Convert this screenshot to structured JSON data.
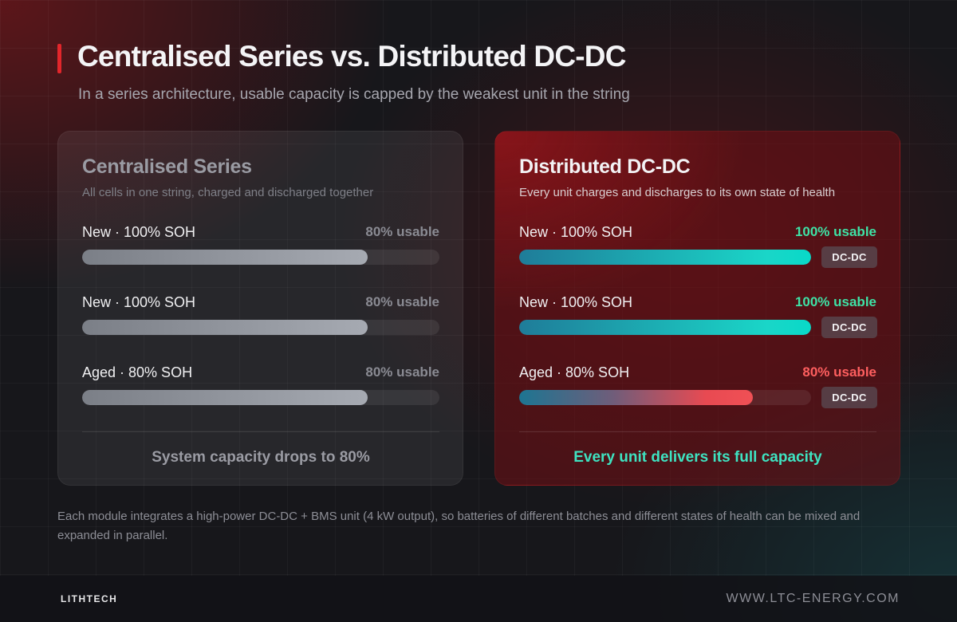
{
  "header": {
    "title": "Centralised Series vs. Distributed DC-DC",
    "subtitle": "In a series architecture, usable capacity is capped by the weakest unit in the string"
  },
  "centralised": {
    "title": "Centralised Series",
    "subtitle": "All cells in one string, charged and discharged together",
    "rows": [
      {
        "label": "New · 100% SOH",
        "usable": "80% usable",
        "fill_percent": 80
      },
      {
        "label": "New · 100% SOH",
        "usable": "80% usable",
        "fill_percent": 80
      },
      {
        "label": "Aged · 80% SOH",
        "usable": "80% usable",
        "fill_percent": 80
      }
    ],
    "summary": "System capacity drops to 80%"
  },
  "distributed": {
    "title": "Distributed DC-DC",
    "subtitle": "Every unit charges and discharges to its own state of health",
    "rows": [
      {
        "label": "New · 100% SOH",
        "usable": "100% usable",
        "fill_percent": 100,
        "badge": "DC-DC"
      },
      {
        "label": "New · 100% SOH",
        "usable": "100% usable",
        "fill_percent": 100,
        "badge": "DC-DC"
      },
      {
        "label": "Aged · 80% SOH",
        "usable": "80% usable",
        "fill_percent": 80,
        "badge": "DC-DC"
      }
    ],
    "summary": "Every unit delivers its full capacity"
  },
  "footnote": "Each module integrates a high-power DC-DC + BMS unit (4 kW output), so batteries of different batches and different states of health can be mixed and expanded in parallel.",
  "footer": {
    "logo": "LITHTECH",
    "website": "WWW.LTC-ENERGY.COM"
  },
  "colors": {
    "accent_red": "#e2262b",
    "usable_green": "#3ee3a6",
    "usable_red": "#ff5f5f",
    "summary_teal": "#3ee3c1"
  }
}
